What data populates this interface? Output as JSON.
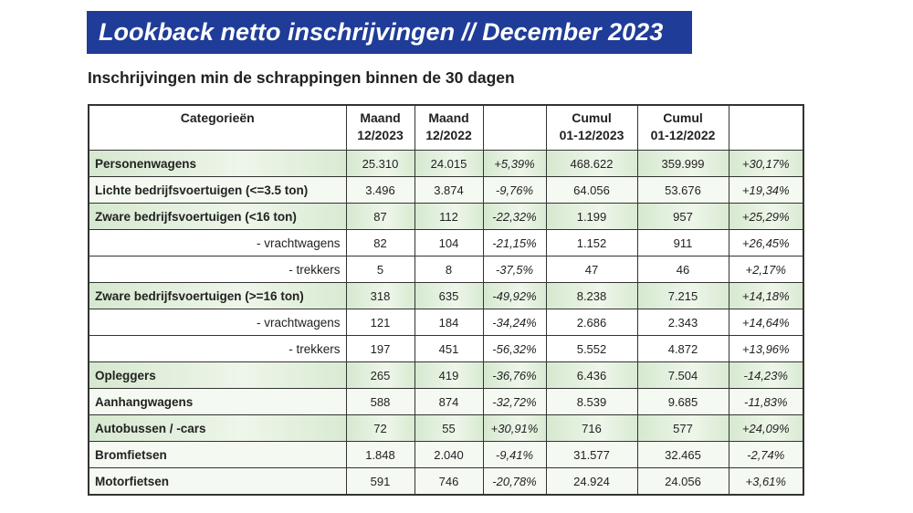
{
  "title": "Lookback netto inschrijvingen // December 2023",
  "subtitle": "Inschrijvingen min de schrappingen binnen de 30 dagen",
  "colors": {
    "banner": "#1f3c98",
    "row_green": "#d6e8cf"
  },
  "table": {
    "headers": [
      "Categorieën",
      "Maand 12/2023",
      "Maand 12/2022",
      "",
      "Cumul 01-12/2023",
      "Cumul 01-12/2022",
      ""
    ],
    "rows": [
      {
        "style": "green",
        "type": "cat",
        "cells": [
          "Personenwagens",
          "25.310",
          "24.015",
          "+5,39%",
          "468.622",
          "359.999",
          "+30,17%"
        ]
      },
      {
        "style": "light",
        "type": "cat",
        "cells": [
          "Lichte bedrijfsvoertuigen (<=3.5 ton)",
          "3.496",
          "3.874",
          "-9,76%",
          "64.056",
          "53.676",
          "+19,34%"
        ]
      },
      {
        "style": "green",
        "type": "cat",
        "cells": [
          "Zware bedrijfsvoertuigen (<16 ton)",
          "87",
          "112",
          "-22,32%",
          "1.199",
          "957",
          "+25,29%"
        ]
      },
      {
        "style": "white",
        "type": "sub",
        "cells": [
          "- vrachtwagens",
          "82",
          "104",
          "-21,15%",
          "1.152",
          "911",
          "+26,45%"
        ]
      },
      {
        "style": "white",
        "type": "sub",
        "cells": [
          "- trekkers",
          "5",
          "8",
          "-37,5%",
          "47",
          "46",
          "+2,17%"
        ]
      },
      {
        "style": "green",
        "type": "cat",
        "cells": [
          "Zware bedrijfsvoertuigen (>=16 ton)",
          "318",
          "635",
          "-49,92%",
          "8.238",
          "7.215",
          "+14,18%"
        ]
      },
      {
        "style": "white",
        "type": "sub",
        "cells": [
          "- vrachtwagens",
          "121",
          "184",
          "-34,24%",
          "2.686",
          "2.343",
          "+14,64%"
        ]
      },
      {
        "style": "white",
        "type": "sub",
        "cells": [
          "- trekkers",
          "197",
          "451",
          "-56,32%",
          "5.552",
          "4.872",
          "+13,96%"
        ]
      },
      {
        "style": "green",
        "type": "cat",
        "cells": [
          "Opleggers",
          "265",
          "419",
          "-36,76%",
          "6.436",
          "7.504",
          "-14,23%"
        ]
      },
      {
        "style": "light",
        "type": "cat",
        "cells": [
          "Aanhangwagens",
          "588",
          "874",
          "-32,72%",
          "8.539",
          "9.685",
          "-11,83%"
        ]
      },
      {
        "style": "green",
        "type": "cat",
        "cells": [
          "Autobussen / -cars",
          "72",
          "55",
          "+30,91%",
          "716",
          "577",
          "+24,09%"
        ]
      },
      {
        "style": "light",
        "type": "cat",
        "cells": [
          "Bromfietsen",
          "1.848",
          "2.040",
          "-9,41%",
          "31.577",
          "32.465",
          "-2,74%"
        ]
      },
      {
        "style": "light",
        "type": "cat",
        "cells": [
          "Motorfietsen",
          "591",
          "746",
          "-20,78%",
          "24.924",
          "24.056",
          "+3,61%"
        ]
      }
    ]
  }
}
